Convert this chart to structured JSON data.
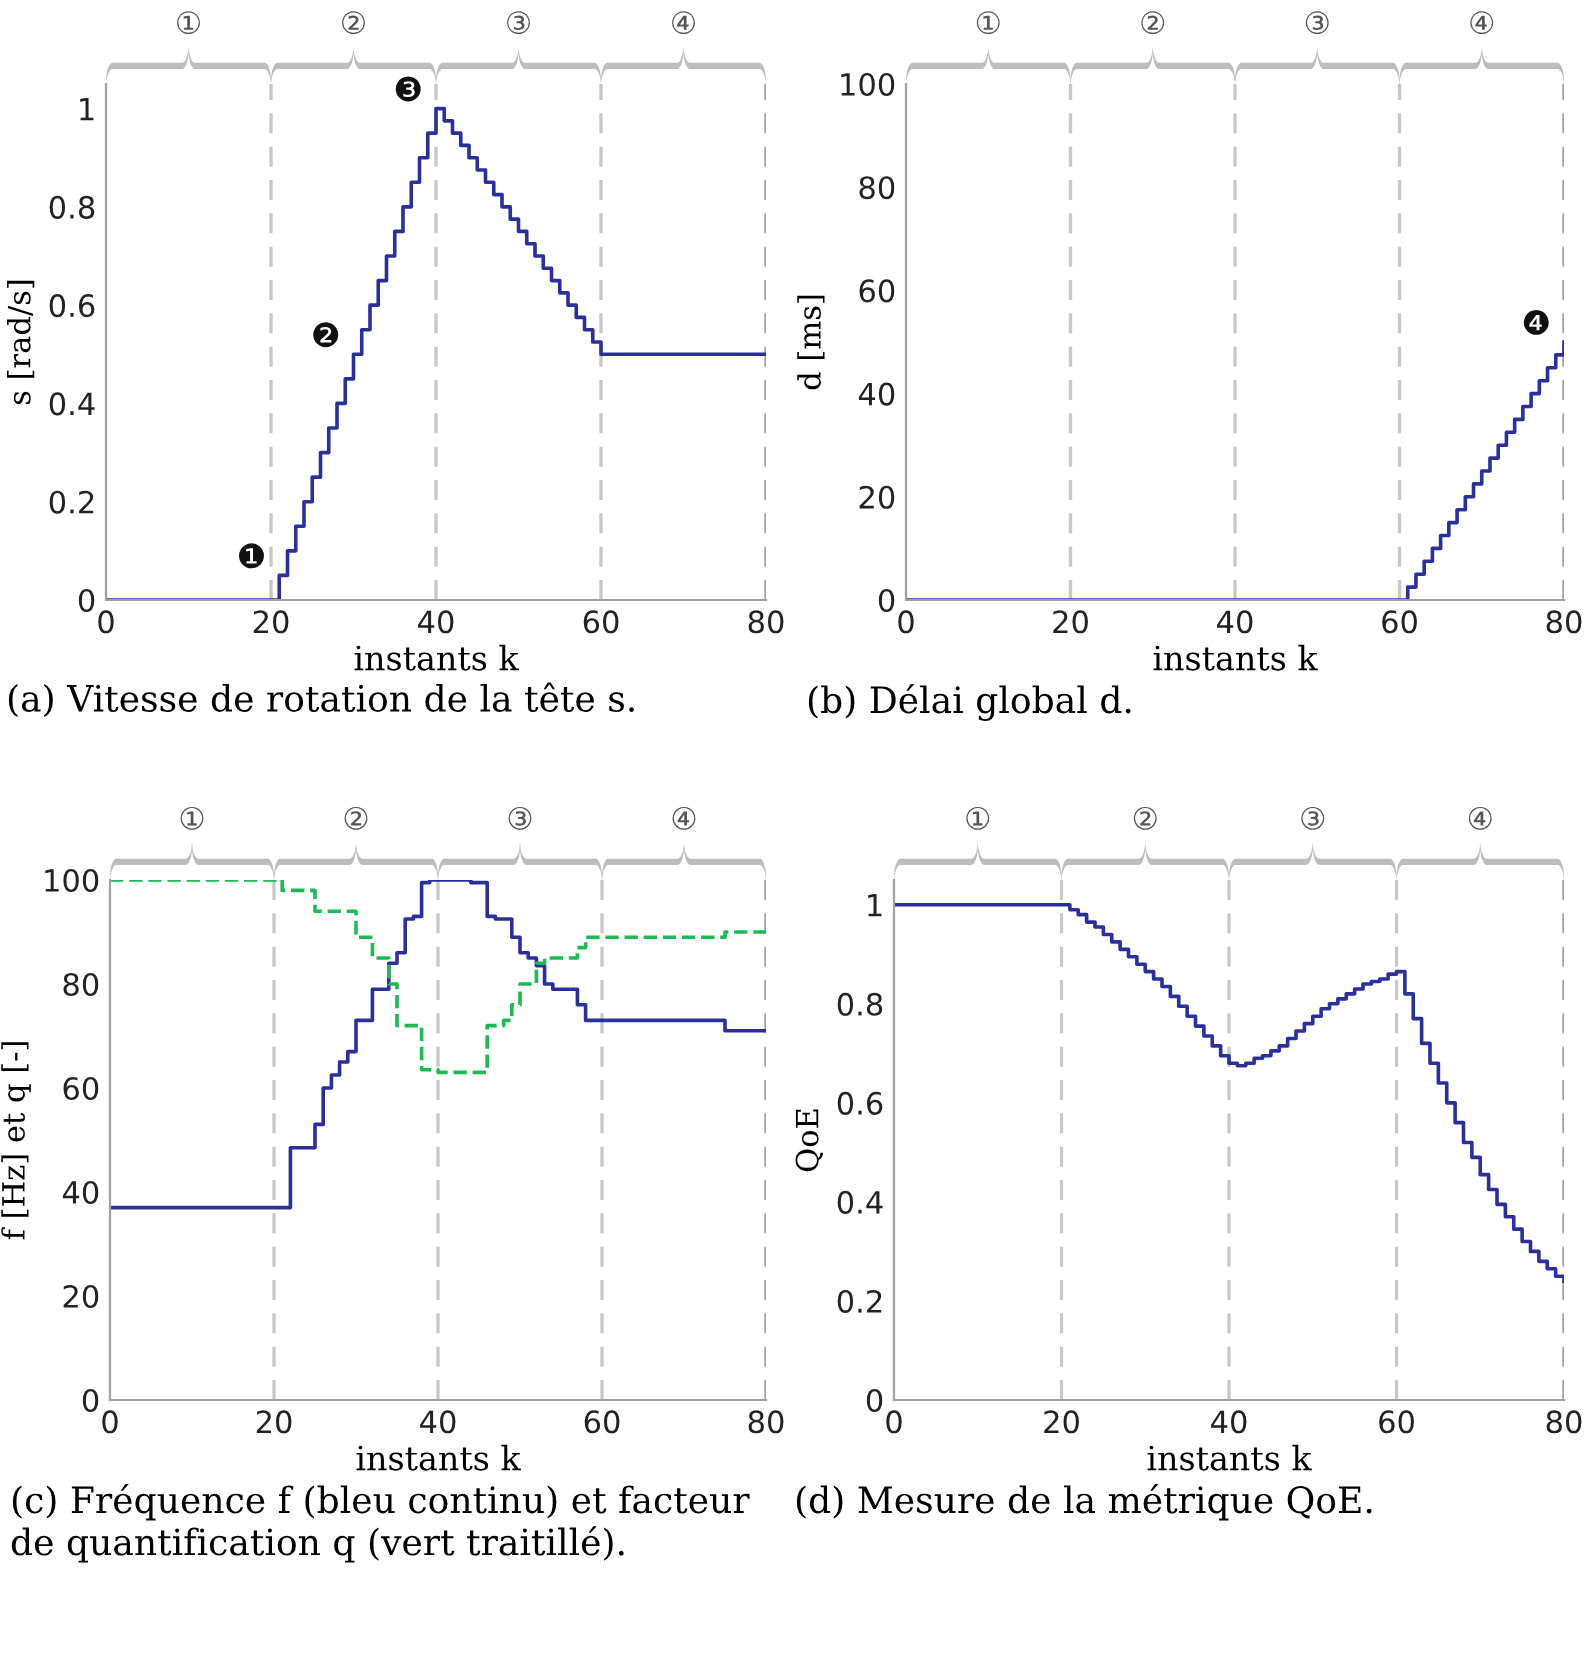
{
  "chart_data": [
    {
      "type": "step",
      "title": "(a) Vitesse de rotation de la tête s.",
      "xlabel": "instants k",
      "ylabel": "s [rad/s]",
      "xlim": [
        0,
        80
      ],
      "ylim": [
        0,
        1.05
      ],
      "xticks": [
        0,
        20,
        40,
        60,
        80
      ],
      "yticks": [
        0,
        0.2,
        0.4,
        0.6,
        0.8,
        1
      ],
      "grid": false,
      "legend": false,
      "x": [
        0,
        1,
        2,
        3,
        4,
        5,
        6,
        7,
        8,
        9,
        10,
        11,
        12,
        13,
        14,
        15,
        16,
        17,
        18,
        19,
        20,
        21,
        22,
        23,
        24,
        25,
        26,
        27,
        28,
        29,
        30,
        31,
        32,
        33,
        34,
        35,
        36,
        37,
        38,
        39,
        40,
        41,
        42,
        43,
        44,
        45,
        46,
        47,
        48,
        49,
        50,
        51,
        52,
        53,
        54,
        55,
        56,
        57,
        58,
        59,
        60,
        61,
        62,
        63,
        64,
        65,
        66,
        67,
        68,
        69,
        70,
        71,
        72,
        73,
        74,
        75,
        76,
        77,
        78,
        79,
        80
      ],
      "series": [
        {
          "color": "#2b2f9e",
          "line_style": "solid",
          "values": [
            0,
            0,
            0,
            0,
            0,
            0,
            0,
            0,
            0,
            0,
            0,
            0,
            0,
            0,
            0,
            0,
            0,
            0,
            0,
            0,
            0,
            0.05,
            0.1,
            0.15,
            0.2,
            0.25,
            0.3,
            0.35,
            0.4,
            0.45,
            0.5,
            0.55,
            0.6,
            0.65,
            0.7,
            0.75,
            0.8,
            0.85,
            0.9,
            0.95,
            1,
            0.975,
            0.95,
            0.925,
            0.9,
            0.875,
            0.85,
            0.825,
            0.8,
            0.775,
            0.75,
            0.725,
            0.7,
            0.675,
            0.65,
            0.625,
            0.6,
            0.575,
            0.55,
            0.525,
            0.5,
            0.5,
            0.5,
            0.5,
            0.5,
            0.5,
            0.5,
            0.5,
            0.5,
            0.5,
            0.5,
            0.5,
            0.5,
            0.5,
            0.5,
            0.5,
            0.5,
            0.5,
            0.5,
            0.5,
            0.5
          ]
        }
      ],
      "ref_lines": [
        {
          "axis": "x",
          "value": 20,
          "color": "#c8c8c8",
          "line_style": "dashed"
        },
        {
          "axis": "x",
          "value": 40,
          "color": "#c8c8c8",
          "line_style": "dashed"
        },
        {
          "axis": "x",
          "value": 60,
          "color": "#c8c8c8",
          "line_style": "dashed"
        },
        {
          "axis": "x",
          "value": 80,
          "color": "#a0a0a0",
          "line_style": "dashed"
        }
      ],
      "annotations": [
        "①",
        "②",
        "③",
        "④",
        {
          "text": "❶",
          "x": 21,
          "y": 0.05
        },
        {
          "text": "❷",
          "x": 30,
          "y": 0.5
        },
        {
          "text": "❸",
          "x": 40,
          "y": 1
        }
      ]
    },
    {
      "type": "step",
      "title": "(b) Délai global d.",
      "xlabel": "instants k",
      "ylabel": "d [ms]",
      "xlim": [
        0,
        80
      ],
      "ylim": [
        0,
        100
      ],
      "xticks": [
        0,
        20,
        40,
        60,
        80
      ],
      "yticks": [
        0,
        20,
        40,
        60,
        80,
        100
      ],
      "grid": false,
      "legend": false,
      "x": [
        0,
        1,
        2,
        3,
        4,
        5,
        6,
        7,
        8,
        9,
        10,
        11,
        12,
        13,
        14,
        15,
        16,
        17,
        18,
        19,
        20,
        21,
        22,
        23,
        24,
        25,
        26,
        27,
        28,
        29,
        30,
        31,
        32,
        33,
        34,
        35,
        36,
        37,
        38,
        39,
        40,
        41,
        42,
        43,
        44,
        45,
        46,
        47,
        48,
        49,
        50,
        51,
        52,
        53,
        54,
        55,
        56,
        57,
        58,
        59,
        60,
        61,
        62,
        63,
        64,
        65,
        66,
        67,
        68,
        69,
        70,
        71,
        72,
        73,
        74,
        75,
        76,
        77,
        78,
        79,
        80
      ],
      "series": [
        {
          "color": "#2b2f9e",
          "line_style": "solid",
          "values": [
            0,
            0,
            0,
            0,
            0,
            0,
            0,
            0,
            0,
            0,
            0,
            0,
            0,
            0,
            0,
            0,
            0,
            0,
            0,
            0,
            0,
            0,
            0,
            0,
            0,
            0,
            0,
            0,
            0,
            0,
            0,
            0,
            0,
            0,
            0,
            0,
            0,
            0,
            0,
            0,
            0,
            0,
            0,
            0,
            0,
            0,
            0,
            0,
            0,
            0,
            0,
            0,
            0,
            0,
            0,
            0,
            0,
            0,
            0,
            0,
            0,
            2.5,
            5,
            7.5,
            10,
            12.5,
            15,
            17.5,
            20,
            22.5,
            25,
            27.5,
            30,
            32.5,
            35,
            37.5,
            40,
            42.5,
            45,
            47.5,
            50
          ]
        }
      ],
      "ref_lines": [
        {
          "axis": "x",
          "value": 20,
          "color": "#c8c8c8",
          "line_style": "dashed"
        },
        {
          "axis": "x",
          "value": 40,
          "color": "#c8c8c8",
          "line_style": "dashed"
        },
        {
          "axis": "x",
          "value": 60,
          "color": "#c8c8c8",
          "line_style": "dashed"
        },
        {
          "axis": "x",
          "value": 80,
          "color": "#a0a0a0",
          "line_style": "dashed"
        }
      ],
      "annotations": [
        "①",
        "②",
        "③",
        "④",
        {
          "text": "❹",
          "x": 80,
          "y": 50
        }
      ]
    },
    {
      "type": "step",
      "title": "(c) Fréquence f (bleu continu) et facteur de quantification q (vert traitillé).",
      "xlabel": "instants k",
      "ylabel": "f [Hz] et q [-]",
      "xlim": [
        0,
        80
      ],
      "ylim": [
        0,
        100
      ],
      "xticks": [
        0,
        20,
        40,
        60,
        80
      ],
      "yticks": [
        0,
        20,
        40,
        60,
        80,
        100
      ],
      "grid": false,
      "legend": false,
      "series": [
        {
          "color": "#2b2f9e",
          "line_style": "solid",
          "x": [
            0,
            22,
            25,
            26,
            27,
            28,
            29,
            30,
            32,
            34,
            35,
            36,
            37,
            38,
            39,
            44,
            46,
            47,
            49,
            50,
            51,
            52,
            53,
            54,
            57,
            58,
            75,
            80
          ],
          "values": [
            37,
            48.5,
            53,
            60,
            62.5,
            65,
            67,
            73,
            79,
            84,
            86,
            92.5,
            93,
            99.5,
            100,
            99.5,
            93,
            92.5,
            89,
            86,
            85,
            83.5,
            80,
            79,
            76,
            73,
            71,
            71
          ]
        },
        {
          "color": "#1db954",
          "line_style": "dashed",
          "x": [
            0,
            21,
            25,
            30,
            32,
            34,
            35,
            38,
            40,
            46,
            48,
            49,
            50,
            52,
            53,
            57,
            58,
            75,
            80
          ],
          "values": [
            100,
            98,
            94,
            89,
            85,
            80,
            72,
            63.5,
            63,
            72,
            73,
            76,
            80,
            84,
            85,
            87,
            89,
            90,
            90
          ]
        }
      ],
      "ref_lines": [
        {
          "axis": "x",
          "value": 20,
          "color": "#c8c8c8",
          "line_style": "dashed"
        },
        {
          "axis": "x",
          "value": 40,
          "color": "#c8c8c8",
          "line_style": "dashed"
        },
        {
          "axis": "x",
          "value": 60,
          "color": "#c8c8c8",
          "line_style": "dashed"
        },
        {
          "axis": "x",
          "value": 80,
          "color": "#a0a0a0",
          "line_style": "dashed"
        }
      ],
      "annotations": [
        "①",
        "②",
        "③",
        "④"
      ]
    },
    {
      "type": "step",
      "title": "(d) Mesure de la métrique QoE.",
      "xlabel": "instants k",
      "ylabel": "QoE",
      "xlim": [
        0,
        80
      ],
      "ylim": [
        0,
        1.05
      ],
      "xticks": [
        0,
        20,
        40,
        60,
        80
      ],
      "yticks": [
        0,
        0.2,
        0.4,
        0.6,
        0.8,
        1
      ],
      "grid": false,
      "legend": false,
      "x": [
        0,
        20,
        21,
        22,
        23,
        24,
        25,
        26,
        27,
        28,
        29,
        30,
        31,
        32,
        33,
        34,
        35,
        36,
        37,
        38,
        39,
        40,
        41,
        42,
        43,
        44,
        45,
        46,
        47,
        48,
        49,
        50,
        51,
        52,
        53,
        54,
        55,
        56,
        57,
        58,
        59,
        60,
        61,
        62,
        63,
        64,
        65,
        66,
        67,
        68,
        69,
        70,
        71,
        72,
        73,
        74,
        75,
        76,
        77,
        78,
        79,
        80
      ],
      "series": [
        {
          "color": "#2b2f9e",
          "line_style": "solid",
          "values": [
            1,
            1,
            0.99,
            0.98,
            0.965,
            0.955,
            0.94,
            0.925,
            0.91,
            0.895,
            0.88,
            0.865,
            0.85,
            0.835,
            0.815,
            0.795,
            0.775,
            0.755,
            0.735,
            0.715,
            0.695,
            0.68,
            0.675,
            0.68,
            0.69,
            0.695,
            0.705,
            0.715,
            0.73,
            0.745,
            0.76,
            0.775,
            0.79,
            0.8,
            0.81,
            0.82,
            0.83,
            0.84,
            0.845,
            0.85,
            0.86,
            0.865,
            0.82,
            0.77,
            0.72,
            0.68,
            0.64,
            0.6,
            0.56,
            0.52,
            0.49,
            0.455,
            0.425,
            0.395,
            0.37,
            0.345,
            0.32,
            0.3,
            0.28,
            0.265,
            0.25,
            0.24
          ]
        }
      ],
      "ref_lines": [
        {
          "axis": "x",
          "value": 20,
          "color": "#c8c8c8",
          "line_style": "dashed"
        },
        {
          "axis": "x",
          "value": 40,
          "color": "#c8c8c8",
          "line_style": "dashed"
        },
        {
          "axis": "x",
          "value": 60,
          "color": "#c8c8c8",
          "line_style": "dashed"
        },
        {
          "axis": "x",
          "value": 80,
          "color": "#a0a0a0",
          "line_style": "dashed"
        }
      ],
      "annotations": [
        "①",
        "②",
        "③",
        "④"
      ]
    }
  ]
}
